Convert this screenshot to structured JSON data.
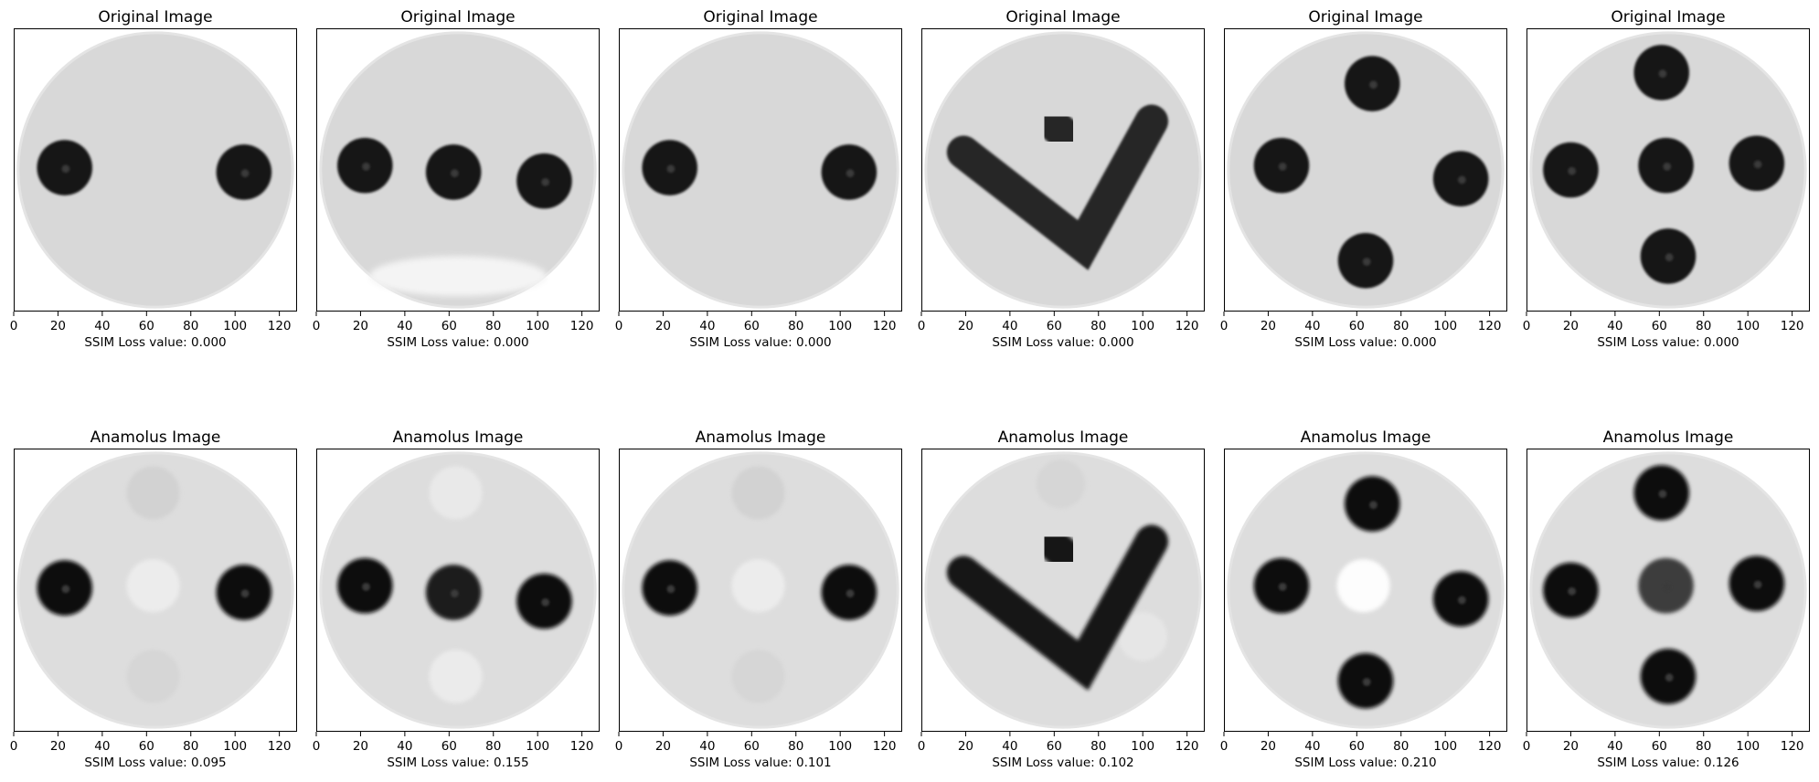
{
  "chart_data": {
    "type": "image_grid",
    "rows": 2,
    "cols": 6,
    "xlim": [
      0,
      128
    ],
    "xticks": [
      0,
      20,
      40,
      60,
      80,
      100,
      120
    ],
    "yticks_visible": false,
    "grid": false,
    "panels": [
      {
        "row": 0,
        "col": 0,
        "title": "Original Image",
        "xlabel": "SSIM Loss value: 0.000",
        "ssim_loss": 0.0,
        "pattern": "two_dots_horizontal",
        "variant": "original"
      },
      {
        "row": 0,
        "col": 1,
        "title": "Original Image",
        "xlabel": "SSIM Loss value: 0.000",
        "ssim_loss": 0.0,
        "pattern": "three_dots_horizontal",
        "variant": "original"
      },
      {
        "row": 0,
        "col": 2,
        "title": "Original Image",
        "xlabel": "SSIM Loss value: 0.000",
        "ssim_loss": 0.0,
        "pattern": "two_dots_horizontal",
        "variant": "original"
      },
      {
        "row": 0,
        "col": 3,
        "title": "Original Image",
        "xlabel": "SSIM Loss value: 0.000",
        "ssim_loss": 0.0,
        "pattern": "checkmark",
        "variant": "original"
      },
      {
        "row": 0,
        "col": 4,
        "title": "Original Image",
        "xlabel": "SSIM Loss value: 0.000",
        "ssim_loss": 0.0,
        "pattern": "four_dots_diamond",
        "variant": "original"
      },
      {
        "row": 0,
        "col": 5,
        "title": "Original Image",
        "xlabel": "SSIM Loss value: 0.000",
        "ssim_loss": 0.0,
        "pattern": "five_dots_cross",
        "variant": "original"
      },
      {
        "row": 1,
        "col": 0,
        "title": "Anamolus Image",
        "xlabel": "SSIM Loss value: 0.095",
        "ssim_loss": 0.095,
        "pattern": "two_dots_horizontal",
        "variant": "anomalous"
      },
      {
        "row": 1,
        "col": 1,
        "title": "Anamolus Image",
        "xlabel": "SSIM Loss value: 0.155",
        "ssim_loss": 0.155,
        "pattern": "three_dots_horizontal",
        "variant": "anomalous"
      },
      {
        "row": 1,
        "col": 2,
        "title": "Anamolus Image",
        "xlabel": "SSIM Loss value: 0.101",
        "ssim_loss": 0.101,
        "pattern": "two_dots_horizontal",
        "variant": "anomalous"
      },
      {
        "row": 1,
        "col": 3,
        "title": "Anamolus Image",
        "xlabel": "SSIM Loss value: 0.102",
        "ssim_loss": 0.102,
        "pattern": "checkmark",
        "variant": "anomalous"
      },
      {
        "row": 1,
        "col": 4,
        "title": "Anamolus Image",
        "xlabel": "SSIM Loss value: 0.210",
        "ssim_loss": 0.21,
        "pattern": "four_dots_diamond",
        "variant": "anomalous"
      },
      {
        "row": 1,
        "col": 5,
        "title": "Anamolus Image",
        "xlabel": "SSIM Loss value: 0.126",
        "ssim_loss": 0.126,
        "pattern": "five_dots_cross",
        "variant": "anomalous"
      }
    ]
  }
}
